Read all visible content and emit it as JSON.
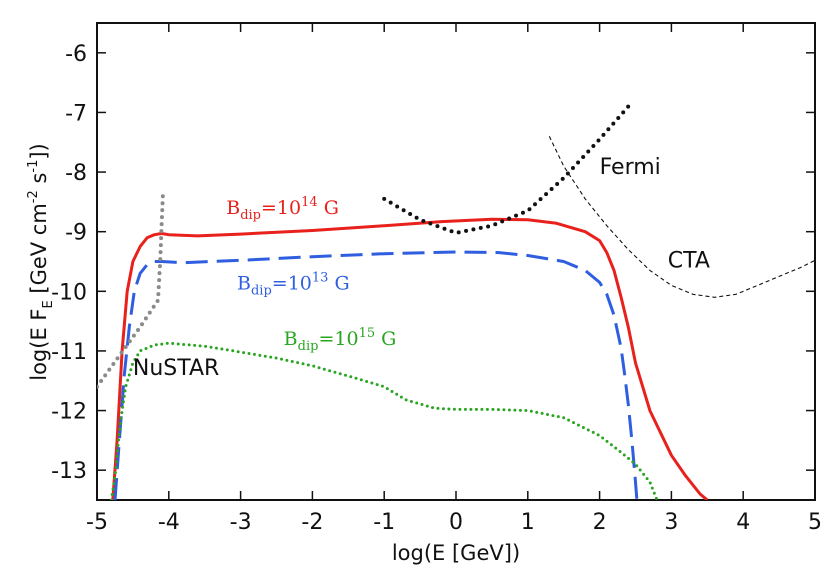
{
  "chart_data": {
    "type": "line",
    "title": "",
    "xlabel": "log(E [GeV])",
    "ylabel_parts": [
      "log(E F",
      "E",
      " [GeV cm",
      "-2",
      " s",
      "-1",
      "])"
    ],
    "xlim": [
      -5,
      5
    ],
    "ylim": [
      -13.5,
      -5.5
    ],
    "xticks": [
      -5,
      -4,
      -3,
      -2,
      -1,
      0,
      1,
      2,
      3,
      4,
      5
    ],
    "yticks": [
      -6,
      -7,
      -8,
      -9,
      -10,
      -11,
      -12,
      -13
    ],
    "xtick_labels": [
      "-5",
      "-4",
      "-3",
      "-2",
      "-1",
      "0",
      "1",
      "2",
      "3",
      "4",
      "5"
    ],
    "ytick_labels": [
      "-6",
      "-7",
      "-8",
      "-9",
      "-10",
      "-11",
      "-12",
      "-13"
    ],
    "series": [
      {
        "name": "B_dip=10^14 G",
        "color": "#e8211c",
        "style": "solid",
        "x": [
          -4.78,
          -4.72,
          -4.65,
          -4.58,
          -4.5,
          -4.4,
          -4.3,
          -4.2,
          -4.1,
          -4.0,
          -3.6,
          -3.0,
          -2.0,
          -1.0,
          -0.2,
          0.5,
          1.0,
          1.4,
          1.8,
          2.0,
          2.1,
          2.2,
          2.3,
          2.4,
          2.5,
          2.7,
          3.0,
          3.2,
          3.4,
          3.5
        ],
        "y": [
          -13.5,
          -12.5,
          -11.0,
          -10.0,
          -9.5,
          -9.25,
          -9.1,
          -9.05,
          -9.03,
          -9.05,
          -9.07,
          -9.04,
          -8.98,
          -8.9,
          -8.83,
          -8.79,
          -8.8,
          -8.86,
          -9.0,
          -9.15,
          -9.35,
          -9.65,
          -10.1,
          -10.6,
          -11.2,
          -12.0,
          -12.75,
          -13.1,
          -13.4,
          -13.5
        ]
      },
      {
        "name": "B_dip=10^13 G",
        "color": "#2f5fe0",
        "style": "dashed",
        "x": [
          -4.75,
          -4.7,
          -4.62,
          -4.55,
          -4.48,
          -4.4,
          -4.3,
          -4.2,
          -4.1,
          -3.8,
          -3.0,
          -2.0,
          -1.0,
          0.0,
          0.6,
          1.0,
          1.5,
          1.8,
          2.0,
          2.1,
          2.2,
          2.3,
          2.35,
          2.4,
          2.45,
          2.5,
          2.52
        ],
        "y": [
          -13.5,
          -12.7,
          -11.4,
          -10.6,
          -10.0,
          -9.7,
          -9.55,
          -9.5,
          -9.5,
          -9.52,
          -9.48,
          -9.42,
          -9.37,
          -9.34,
          -9.35,
          -9.4,
          -9.5,
          -9.65,
          -9.85,
          -10.05,
          -10.4,
          -10.95,
          -11.4,
          -11.9,
          -12.5,
          -13.2,
          -13.5
        ]
      },
      {
        "name": "B_dip=10^15 G",
        "color": "#2aa522",
        "style": "dotted",
        "x": [
          -4.8,
          -4.75,
          -4.7,
          -4.65,
          -4.6,
          -4.5,
          -4.4,
          -4.2,
          -4.0,
          -3.5,
          -3.0,
          -2.5,
          -2.0,
          -1.5,
          -1.0,
          -0.7,
          -0.3,
          0.0,
          0.5,
          1.0,
          1.5,
          2.0,
          2.3,
          2.5,
          2.7,
          2.8
        ],
        "y": [
          -13.5,
          -13.1,
          -12.5,
          -12.0,
          -11.6,
          -11.2,
          -11.0,
          -10.9,
          -10.87,
          -10.92,
          -11.02,
          -11.12,
          -11.25,
          -11.42,
          -11.6,
          -11.82,
          -11.96,
          -11.98,
          -11.98,
          -12.0,
          -12.12,
          -12.42,
          -12.7,
          -12.9,
          -13.2,
          -13.5
        ]
      },
      {
        "name": "Fermi",
        "color": "#111111",
        "style": "dotted-thick",
        "x": [
          -1.0,
          -0.5,
          0.0,
          0.5,
          1.0,
          1.5,
          2.0,
          2.4
        ],
        "y": [
          -8.45,
          -8.8,
          -9.02,
          -8.9,
          -8.65,
          -8.1,
          -7.45,
          -6.9
        ]
      },
      {
        "name": "CTA",
        "color": "#111111",
        "style": "dashed-thin",
        "x": [
          1.3,
          1.5,
          1.8,
          2.1,
          2.4,
          2.7,
          3.0,
          3.3,
          3.6,
          3.9,
          4.2,
          4.5,
          4.8,
          5.0
        ],
        "y": [
          -7.4,
          -7.9,
          -8.45,
          -8.9,
          -9.3,
          -9.65,
          -9.9,
          -10.05,
          -10.1,
          -10.05,
          -9.9,
          -9.75,
          -9.6,
          -9.48
        ]
      },
      {
        "name": "NuSTAR",
        "color": "#8a8a8a",
        "style": "dotted-grey",
        "x": [
          -5.0,
          -4.7,
          -4.4,
          -4.15,
          -4.12,
          -4.1,
          -4.08
        ],
        "y": [
          -11.6,
          -11.1,
          -10.6,
          -10.15,
          -9.5,
          -8.9,
          -8.3
        ]
      }
    ],
    "annotations": [
      {
        "key": "b14",
        "base": "B",
        "sub": "dip",
        "mid": "=10",
        "sup": "14",
        "tail": " G",
        "color": "#e8211c"
      },
      {
        "key": "b13",
        "base": "B",
        "sub": "dip",
        "mid": "=10",
        "sup": "13",
        "tail": " G",
        "color": "#2f5fe0"
      },
      {
        "key": "b15",
        "base": "B",
        "sub": "dip",
        "mid": "=10",
        "sup": "15",
        "tail": " G",
        "color": "#2aa522"
      },
      {
        "key": "fermi",
        "text": "Fermi"
      },
      {
        "key": "cta",
        "text": "CTA"
      },
      {
        "key": "nustar",
        "text": "NuSTAR"
      }
    ]
  }
}
